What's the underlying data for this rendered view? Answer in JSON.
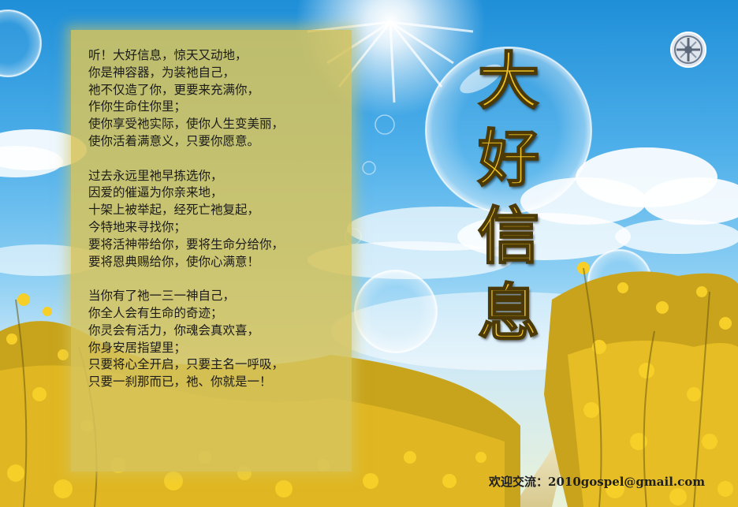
{
  "poem": {
    "stanzas": [
      [
        "听！大好信息，惊天又动地，",
        "你是神容器，为装祂自己，",
        "祂不仅造了你，更要来充满你，",
        "作你生命住你里；",
        "使你享受祂实际，使你人生变美丽，",
        "使你活着满意义，只要你愿意。"
      ],
      [
        "过去永远里祂早拣选你，",
        "因爱的催逼为你亲来地，",
        "十架上被举起，经死亡祂复起，",
        "今特地来寻找你；",
        "要将活神带给你，要将生命分给你，",
        "要将恩典赐给你，使你心满意！"
      ],
      [
        "当你有了祂一三一神自己，",
        "你全人会有生命的奇迹；",
        "你灵会有活力，你魂会真欢喜，",
        "你身安居指望里；",
        "只要将心全开启，只要主名一呼吸，",
        "只要一刹那而已，祂、你就是一！"
      ]
    ]
  },
  "title": {
    "chars": [
      "大",
      "好",
      "信",
      "息"
    ]
  },
  "contact": {
    "label": "欢迎交流：",
    "email": "2010gospel@gmail.com"
  },
  "colors": {
    "sky_top": "#1f8fd8",
    "sky_bottom": "#cfe9f6",
    "panel": "#d6c45c",
    "title_fill": "#f2c421",
    "title_outline": "#4b3a08",
    "flowers": "#f2c521"
  },
  "icons": {
    "logo": "ornamental-cross-badge-icon"
  }
}
